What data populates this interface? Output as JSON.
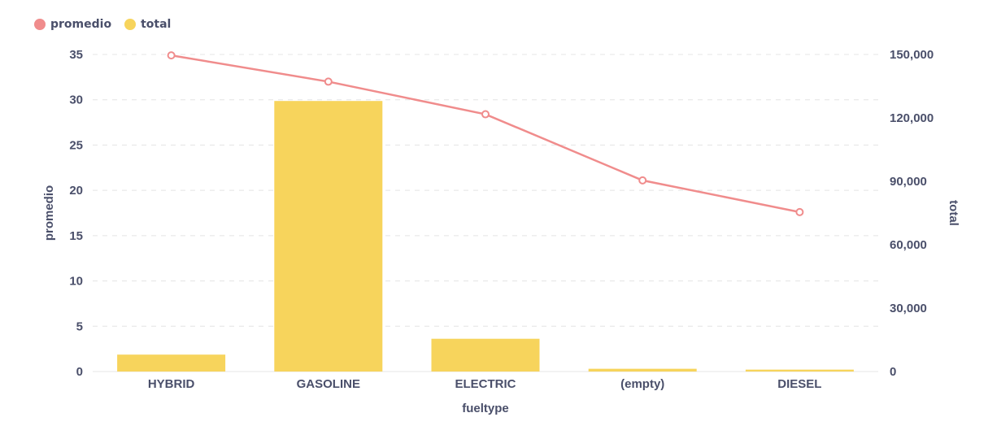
{
  "legend": {
    "items": [
      {
        "label": "promedio",
        "color": "#f08c8c"
      },
      {
        "label": "total",
        "color": "#f7d45c"
      }
    ]
  },
  "chart_data": {
    "type": "bar",
    "categories": [
      "HYBRID",
      "GASOLINE",
      "ELECTRIC",
      "(empty)",
      "DIESEL"
    ],
    "series": [
      {
        "name": "total",
        "type": "bar",
        "axis": "right",
        "color": "#f7d45c",
        "values": [
          8000,
          128000,
          15500,
          1300,
          900
        ]
      },
      {
        "name": "promedio",
        "type": "line",
        "axis": "left",
        "color": "#f08c8c",
        "values": [
          34.9,
          32.0,
          28.4,
          21.1,
          17.6
        ]
      }
    ],
    "xlabel": "fueltype",
    "ylabel": "promedio",
    "y2label": "total",
    "ylim": [
      0,
      35
    ],
    "y2lim": [
      0,
      150000
    ],
    "yticks": [
      "0",
      "5",
      "10",
      "15",
      "20",
      "25",
      "30",
      "35"
    ],
    "y2ticks": [
      "0",
      "30,000",
      "60,000",
      "90,000",
      "120,000",
      "150,000"
    ],
    "grid": true,
    "legend_position": "top-left"
  }
}
